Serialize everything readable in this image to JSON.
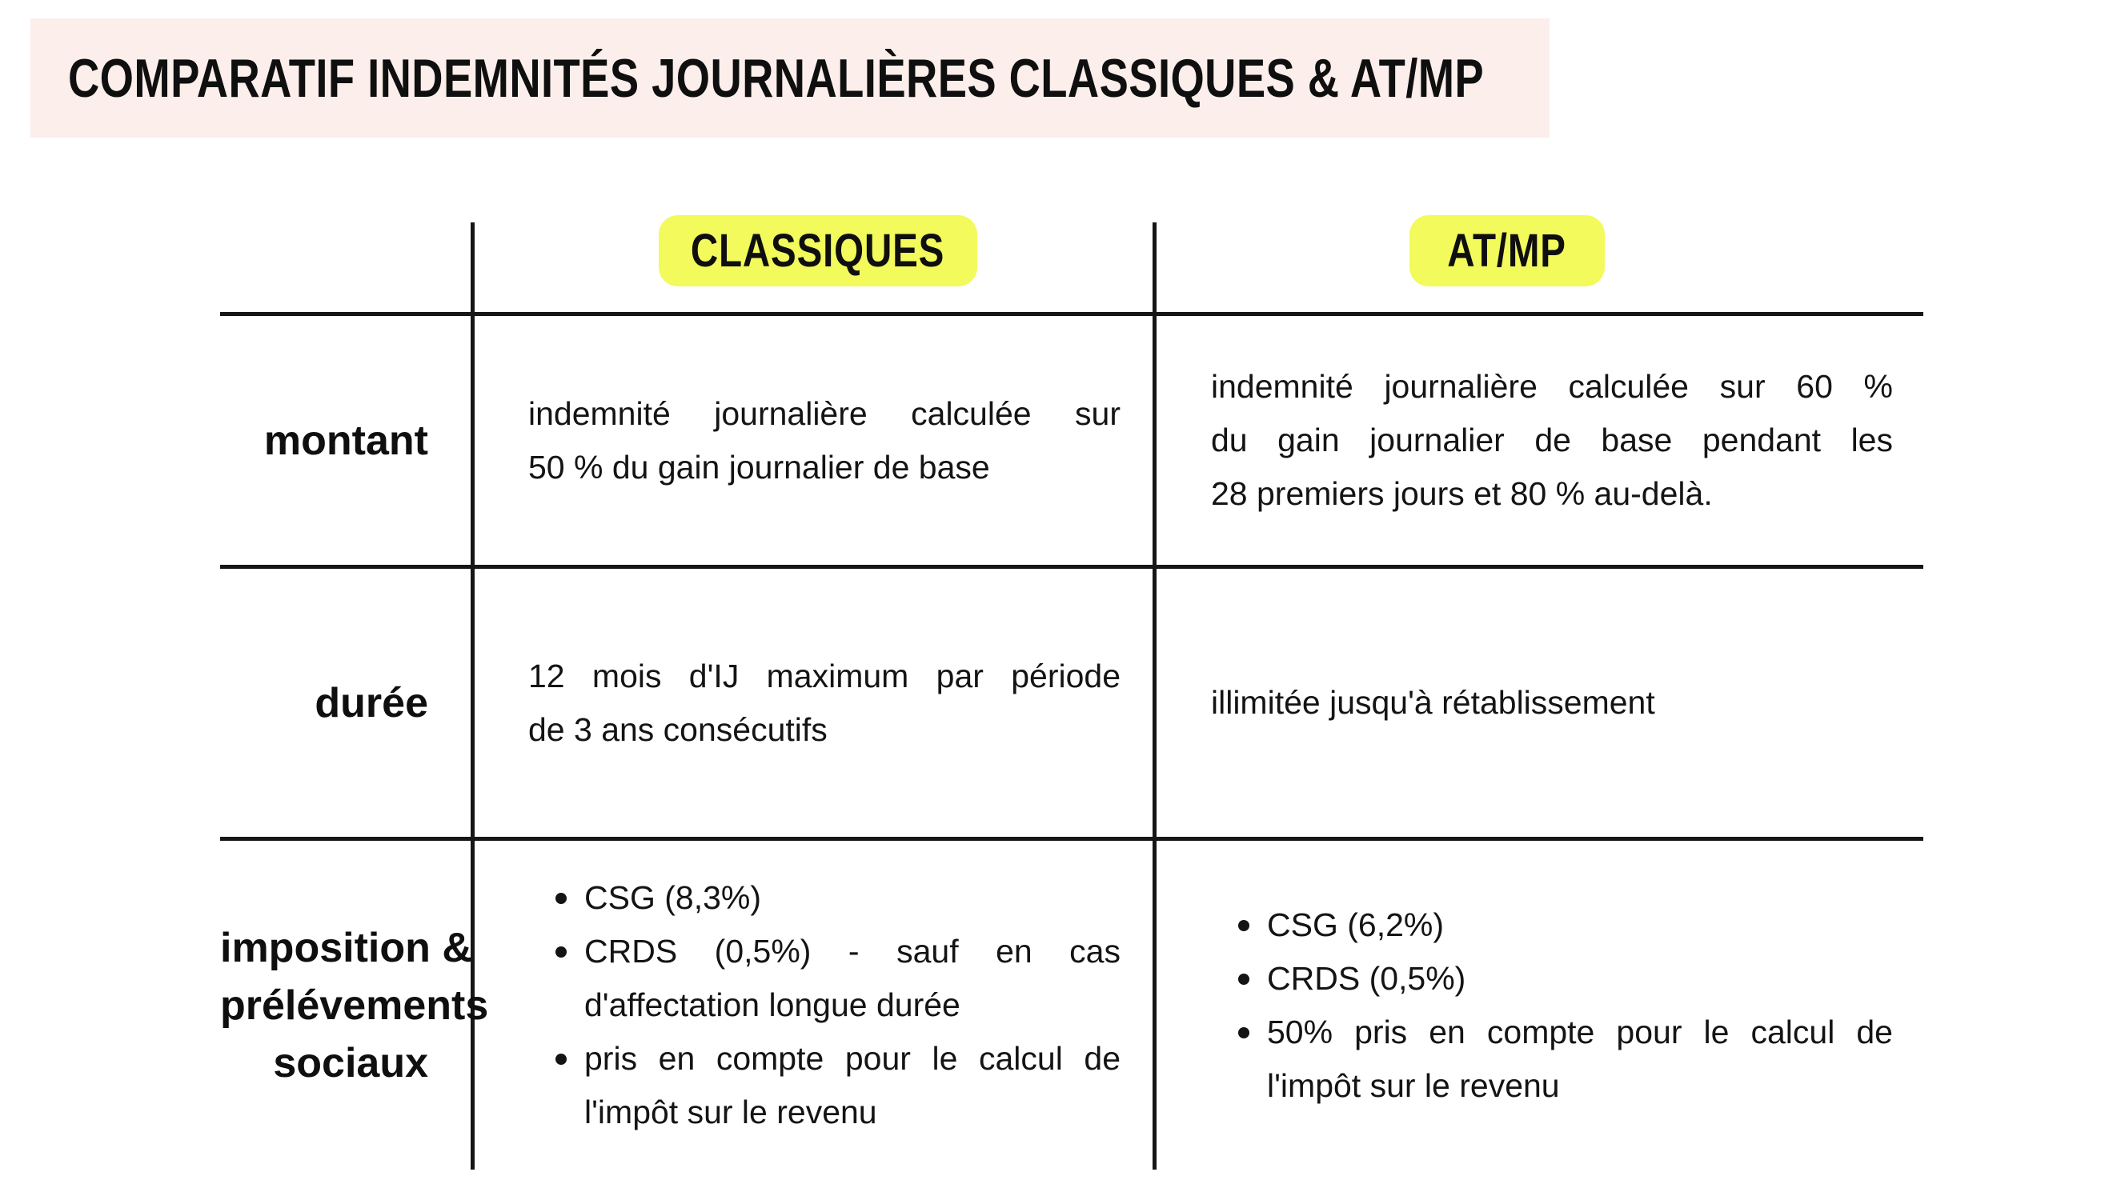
{
  "title": "COMPARATIF INDEMNITÉS JOURNALIÈRES CLASSIQUES & AT/MP",
  "columns": [
    {
      "label": "CLASSIQUES"
    },
    {
      "label": "AT/MP"
    }
  ],
  "rows": [
    {
      "label": "montant",
      "classiques": [
        "indemnité journalière calculée sur",
        "50 % du gain journalier de base"
      ],
      "atmp": [
        "indemnité journalière calculée sur 60 %",
        "du gain journalier de base pendant les",
        "28 premiers jours et 80 % au-delà."
      ]
    },
    {
      "label": "durée",
      "classiques": [
        "12 mois d'IJ maximum par période",
        "de 3 ans consécutifs"
      ],
      "atmp": [
        "illimitée jusqu'à rétablissement"
      ]
    },
    {
      "label_lines": [
        "imposition &",
        "prélévements",
        "sociaux"
      ],
      "classiques_bullets": [
        [
          "CSG (8,3%)"
        ],
        [
          "CRDS (0,5%) - sauf en cas",
          "d'affectation longue durée"
        ],
        [
          "pris en compte pour le calcul de",
          "l'impôt sur le revenu"
        ]
      ],
      "atmp_bullets": [
        [
          "CSG (6,2%)"
        ],
        [
          "CRDS (0,5%)"
        ],
        [
          "50% pris en compte pour le calcul de",
          "l'impôt sur le revenu"
        ]
      ]
    }
  ],
  "colors": {
    "page_bg": "#ffffff",
    "title_banner_bg": "#fceeeb",
    "column_highlight": "#f2fa5c",
    "text": "#141414",
    "table_lines": "#161616"
  }
}
